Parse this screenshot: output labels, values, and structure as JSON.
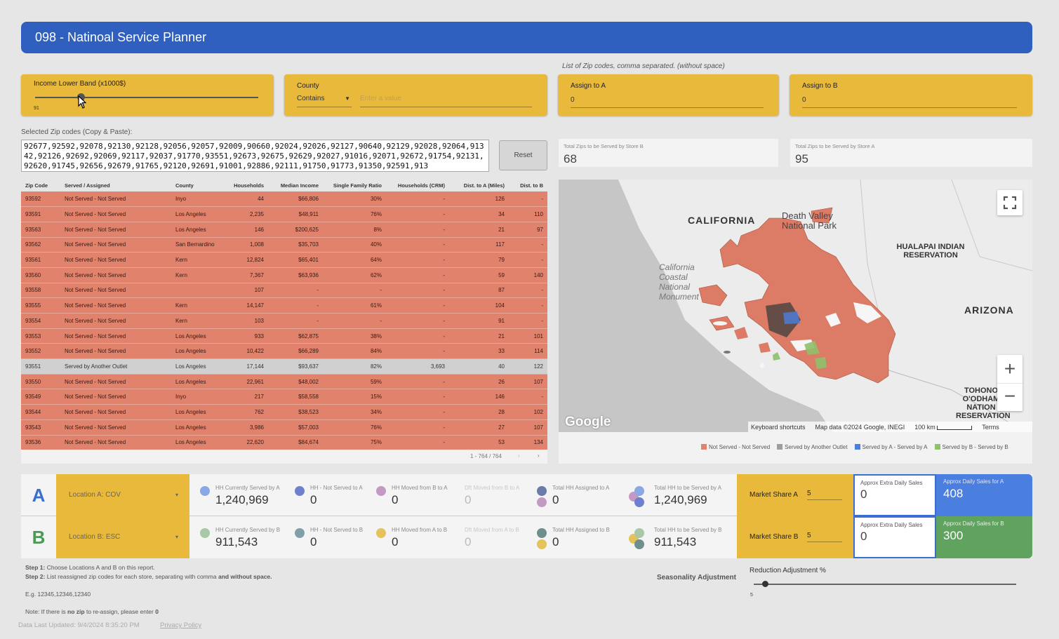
{
  "header": {
    "title": "098 - Natinoal Service Planner"
  },
  "filters": {
    "income": {
      "label": "Income Lower Band (x1000$)",
      "value": "91"
    },
    "county": {
      "label": "County",
      "operator": "Contains",
      "placeholder": "Enter a value"
    },
    "zip_note": "List of Zip codes, comma separated. (without space)",
    "assign_a": {
      "label": "Assign to A",
      "value": "0"
    },
    "assign_b": {
      "label": "Assign to B",
      "value": "0"
    }
  },
  "selected": {
    "label": "Selected Zip codes (Copy & Paste):",
    "text": "92677,92592,92078,92130,92128,92056,92057,92009,90660,92024,92026,92127,90640,92129,92028,92064,91342,92126,92692,92069,92117,92037,91770,93551,92673,92675,92629,92027,91016,92071,92672,91754,92131,92620,91745,92656,92679,91765,92120,92691,91001,92886,92111,91750,91773,91350,92591,913",
    "reset": "Reset"
  },
  "stats": {
    "b": {
      "label": "Total Zips to be Served by Store B",
      "value": "68"
    },
    "a": {
      "label": "Total Zips to be Served by Store A",
      "value": "95"
    }
  },
  "table": {
    "headers": [
      "Zip Code",
      "Served / Assigned",
      "County",
      "Households",
      "Median Income",
      "Single Family Ratio",
      "Households (CRM)",
      "Dist. to A (Miles)",
      "Dist. to B"
    ],
    "rows": [
      [
        "93592",
        "Not Served - Not Served",
        "Inyo",
        "44",
        "$66,806",
        "30%",
        "-",
        "126",
        "-"
      ],
      [
        "93591",
        "Not Served - Not Served",
        "Los Angeles",
        "2,235",
        "$48,911",
        "76%",
        "-",
        "34",
        "110"
      ],
      [
        "93563",
        "Not Served - Not Served",
        "Los Angeles",
        "146",
        "$200,625",
        "8%",
        "-",
        "21",
        "97"
      ],
      [
        "93562",
        "Not Served - Not Served",
        "San Bernardino",
        "1,008",
        "$35,703",
        "40%",
        "-",
        "117",
        "-"
      ],
      [
        "93561",
        "Not Served - Not Served",
        "Kern",
        "12,824",
        "$65,401",
        "64%",
        "-",
        "79",
        "-"
      ],
      [
        "93560",
        "Not Served - Not Served",
        "Kern",
        "7,367",
        "$63,936",
        "62%",
        "-",
        "59",
        "140"
      ],
      [
        "93558",
        "Not Served - Not Served",
        "",
        "107",
        "-",
        "-",
        "-",
        "87",
        "-"
      ],
      [
        "93555",
        "Not Served - Not Served",
        "Kern",
        "14,147",
        "-",
        "61%",
        "-",
        "104",
        "-"
      ],
      [
        "93554",
        "Not Served - Not Served",
        "Kern",
        "103",
        "-",
        "-",
        "-",
        "91",
        "-"
      ],
      [
        "93553",
        "Not Served - Not Served",
        "Los Angeles",
        "933",
        "$62,875",
        "38%",
        "-",
        "21",
        "101"
      ],
      [
        "93552",
        "Not Served - Not Served",
        "Los Angeles",
        "10,422",
        "$66,289",
        "84%",
        "-",
        "33",
        "114"
      ],
      [
        "93551",
        "Served by Another Outlet",
        "Los Angeles",
        "17,144",
        "$93,637",
        "82%",
        "3,693",
        "40",
        "122"
      ],
      [
        "93550",
        "Not Served - Not Served",
        "Los Angeles",
        "22,961",
        "$48,002",
        "59%",
        "-",
        "26",
        "107"
      ],
      [
        "93549",
        "Not Served - Not Served",
        "Inyo",
        "217",
        "$58,558",
        "15%",
        "-",
        "146",
        "-"
      ],
      [
        "93544",
        "Not Served - Not Served",
        "Los Angeles",
        "762",
        "$38,523",
        "34%",
        "-",
        "28",
        "102"
      ],
      [
        "93543",
        "Not Served - Not Served",
        "Los Angeles",
        "3,986",
        "$57,003",
        "76%",
        "-",
        "27",
        "107"
      ],
      [
        "93536",
        "Not Served - Not Served",
        "Los Angeles",
        "22,620",
        "$84,674",
        "75%",
        "-",
        "53",
        "134"
      ]
    ],
    "pagination": "1 - 764 / 764"
  },
  "map": {
    "labels": {
      "california": "CALIFORNIA",
      "death_valley": "Death Valley National Park",
      "hualapai": "HUALAPAI INDIAN RESERVATION",
      "arizona": "ARIZONA",
      "coastal": "California Coastal National Monument",
      "tohono": "TOHONO O'ODHAM NATION RESERVATION",
      "google": "Google"
    },
    "footer": {
      "shortcuts": "Keyboard shortcuts",
      "attribution": "Map data ©2024 Google, INEGI",
      "scale": "100 km",
      "terms": "Terms"
    },
    "legend": [
      {
        "label": "Not Served - Not Served",
        "color": "#e0826c"
      },
      {
        "label": "Served by Another Outlet",
        "color": "#9e9e9e"
      },
      {
        "label": "Served by A - Served by A",
        "color": "#4a7fe0"
      },
      {
        "label": "Served by B - Served by B",
        "color": "#8fc06a"
      }
    ]
  },
  "loc_a": {
    "letter": "A",
    "location": "Location A: COV",
    "metrics": [
      {
        "label": "HH Currently Served by A",
        "value": "1,240,969"
      },
      {
        "label": "HH - Not Served to A",
        "value": "0"
      },
      {
        "label": "HH Moved from B to A",
        "value": "0"
      },
      {
        "label": "Dft Moved from B to A",
        "value": "0"
      },
      {
        "label": "Total HH Assigned to A",
        "value": "0"
      },
      {
        "label": "Total HH to be Served by A",
        "value": "1,240,969"
      }
    ],
    "market_share": {
      "label": "Market Share A",
      "value": "5"
    },
    "extra": {
      "label": "Approx Extra Daily Sales",
      "value": "0"
    },
    "daily": {
      "label": "Approx Daily Sales for A",
      "value": "408"
    }
  },
  "loc_b": {
    "letter": "B",
    "location": "Location B: ESC",
    "metrics": [
      {
        "label": "HH Currently Served by B",
        "value": "911,543"
      },
      {
        "label": "HH - Not Served to B",
        "value": "0"
      },
      {
        "label": "HH Moved from A to B",
        "value": "0"
      },
      {
        "label": "Dft Moved from A to B",
        "value": "0"
      },
      {
        "label": "Total HH Assigned to B",
        "value": "0"
      },
      {
        "label": "Total HH to be Served by B",
        "value": "911,543"
      }
    ],
    "market_share": {
      "label": "Market Share B",
      "value": "5"
    },
    "extra": {
      "label": "Approx Extra Daily Sales",
      "value": "0"
    },
    "daily": {
      "label": "Approx Daily Sales for B",
      "value": "300"
    }
  },
  "instructions": {
    "step1_label": "Step 1:",
    "step1": "Choose Locations A and B on this report.",
    "step2_label": "Step 2:",
    "step2": "List reassigned zip codes for each store, separating with comma",
    "step2_and": "and without space.",
    "example": "E.g. 12345,12346,12340",
    "note_pre": "Note: If there is",
    "note_bold": "no zip",
    "note_mid": "to re-assign, please enter",
    "note_zero": "0"
  },
  "seasonality": {
    "label": "Seasonality Adjustment"
  },
  "reduction": {
    "label": "Reduction Adjustment %",
    "value": "5"
  },
  "footer": {
    "updated": "Data Last Updated: 9/4/2024 8:35:20 PM",
    "privacy": "Privacy Policy"
  }
}
